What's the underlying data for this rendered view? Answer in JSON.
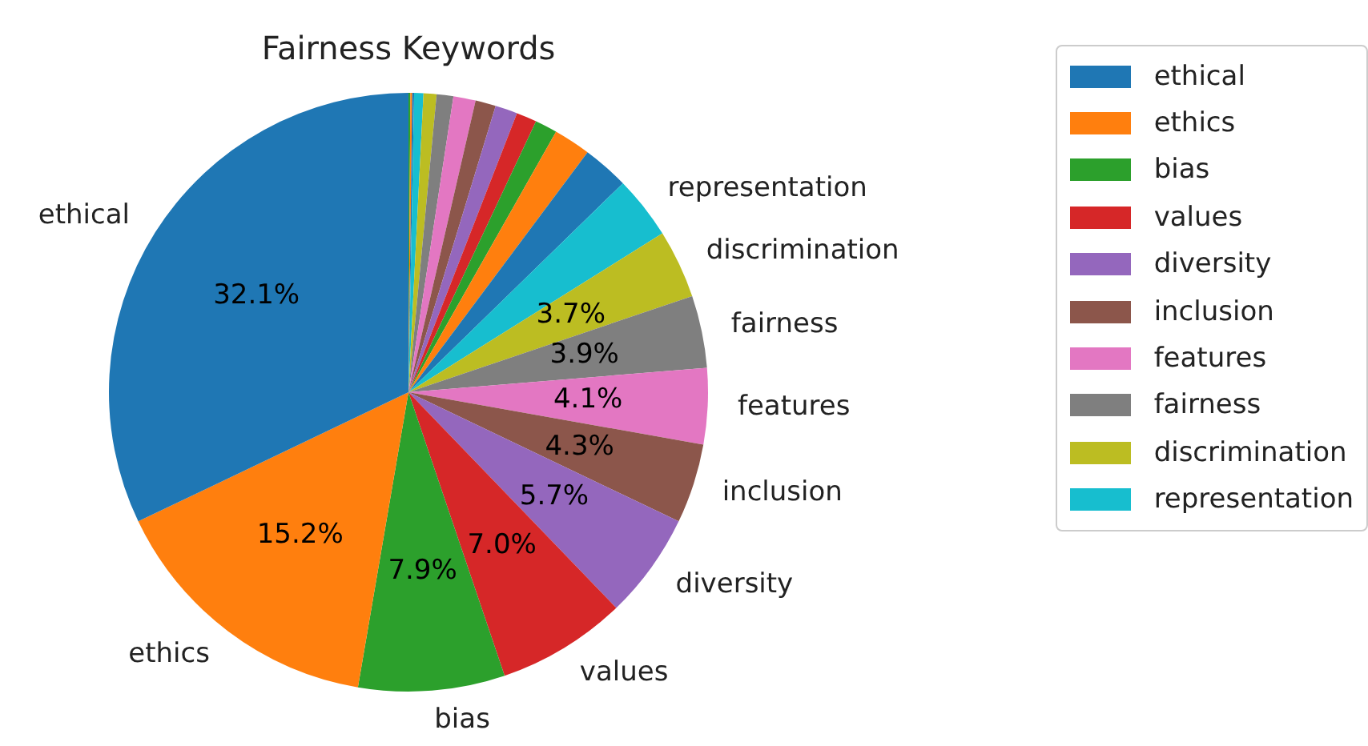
{
  "chart_data": {
    "type": "pie",
    "title": "Fairness Keywords",
    "categories": [
      "ethical",
      "ethics",
      "bias",
      "values",
      "diversity",
      "inclusion",
      "features",
      "fairness",
      "discrimination",
      "representation",
      null,
      null,
      null,
      null,
      null,
      null,
      null,
      null,
      null,
      null,
      null,
      null,
      null
    ],
    "values": [
      32.1,
      15.2,
      7.9,
      7.0,
      5.7,
      4.3,
      4.1,
      3.9,
      3.7,
      3.4,
      2.5,
      2.0,
      1.2,
      1.1,
      1.2,
      1.1,
      1.2,
      0.9,
      0.7,
      0.5,
      0.1,
      0.1,
      0.1
    ],
    "value_labels": [
      "32.1%",
      "15.2%",
      "7.9%",
      "7.0%",
      "5.7%",
      "4.3%",
      "4.1%",
      "3.9%",
      "3.7%",
      null,
      null,
      null,
      null,
      null,
      null,
      null,
      null,
      null,
      null,
      null,
      null,
      null,
      null
    ],
    "colors": [
      "#1f77b4",
      "#ff7f0e",
      "#2ca02c",
      "#d62728",
      "#9467bd",
      "#8c564b",
      "#e377c2",
      "#7f7f7f",
      "#bcbd22",
      "#17becf",
      "#1f77b4",
      "#ff7f0e",
      "#2ca02c",
      "#d62728",
      "#9467bd",
      "#8c564b",
      "#e377c2",
      "#7f7f7f",
      "#bcbd22",
      "#17becf",
      "#1f77b4",
      "#ff7f0e",
      "#2ca02c"
    ],
    "legend": "right"
  }
}
